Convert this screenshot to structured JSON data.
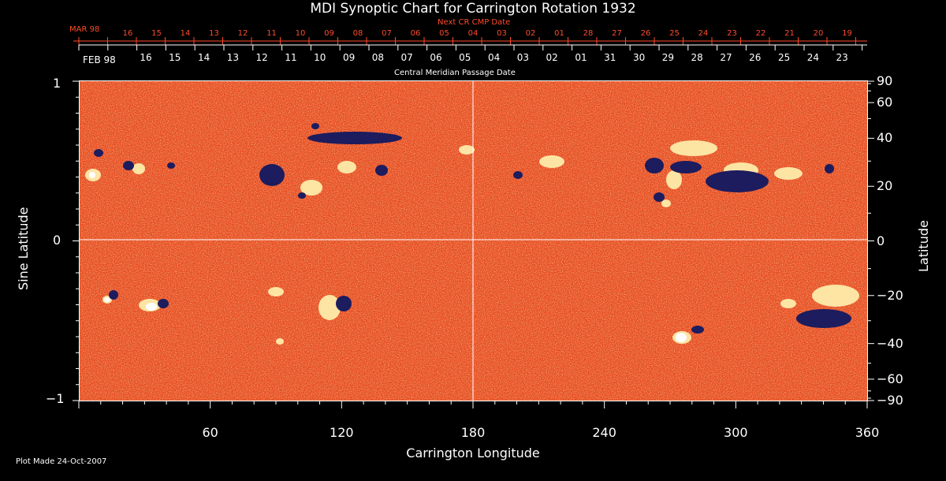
{
  "title": "MDI Synoptic Chart for Carrington Rotation 1932",
  "next_cr_label": "Next CR CMP Date",
  "cmp_label": "Central Meridian Passage Date",
  "top_red_row": {
    "month_label": "MAR 98",
    "days": [
      "16",
      "15",
      "14",
      "13",
      "12",
      "11",
      "10",
      "09",
      "08",
      "07",
      "06",
      "05",
      "04",
      "03",
      "02",
      "01",
      "28",
      "27",
      "26",
      "25",
      "24",
      "23",
      "22",
      "21",
      "20",
      "19"
    ]
  },
  "top_white_row": {
    "month_label": "FEB 98",
    "days": [
      "16",
      "15",
      "14",
      "13",
      "12",
      "11",
      "10",
      "09",
      "08",
      "07",
      "06",
      "05",
      "04",
      "03",
      "02",
      "01",
      "31",
      "30",
      "29",
      "28",
      "27",
      "26",
      "25",
      "24",
      "23"
    ]
  },
  "left_axis": {
    "label": "Sine Latitude",
    "ticks": [
      "1",
      "0",
      "−1"
    ]
  },
  "right_axis": {
    "label": "Latitude",
    "ticks": [
      "90",
      "60",
      "40",
      "20",
      "0",
      "−20",
      "−40",
      "−60",
      "−90"
    ]
  },
  "bottom_axis": {
    "label": "Carrington Longitude",
    "ticks": [
      "60",
      "120",
      "180",
      "240",
      "300",
      "360"
    ]
  },
  "footer": "Plot Made 24-Oct-2007",
  "colors": {
    "background": "#000000",
    "map_base": "#e8461e",
    "positive_polarity": "#fff6c8",
    "negative_polarity": "#1a1a5a",
    "red_text": "#ff4a2a"
  }
}
